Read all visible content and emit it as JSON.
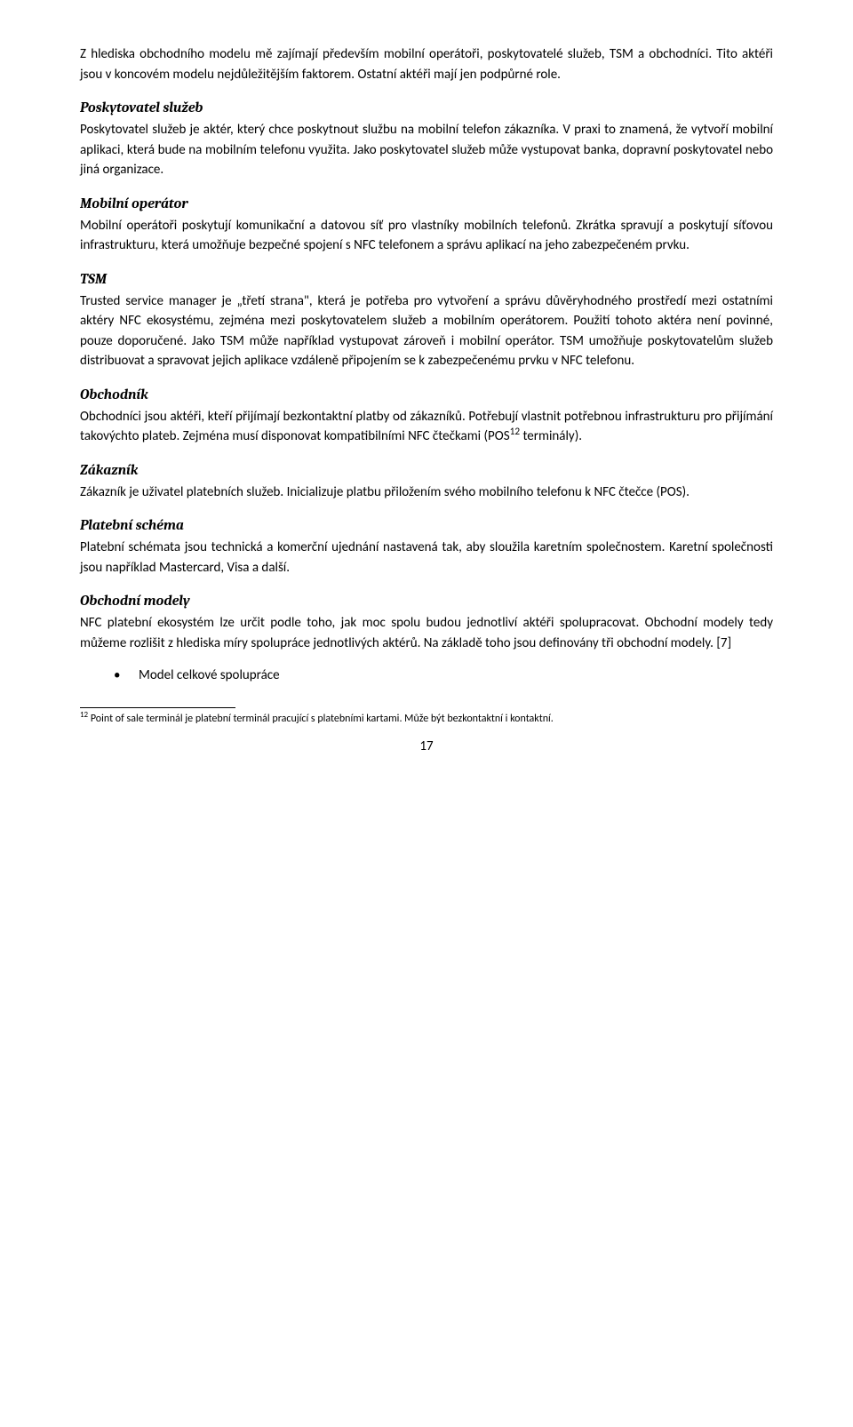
{
  "intro": "Z hlediska obchodního modelu mě zajímají především mobilní operátoři, poskytovatelé služeb, TSM a obchodníci. Tito aktéři jsou v koncovém modelu nejdůležitějším faktorem. Ostatní aktéři mají jen podpůrné role.",
  "sections": {
    "poskytovatel": {
      "title": "Poskytovatel služeb",
      "body": "Poskytovatel služeb je aktér, který chce poskytnout službu na mobilní telefon zákazníka. V praxi to znamená, že vytvoří mobilní aplikaci, která bude na mobilním telefonu využita. Jako poskytovatel služeb může vystupovat banka, dopravní poskytovatel nebo jiná organizace."
    },
    "operator": {
      "title": "Mobilní operátor",
      "body": "Mobilní operátoři poskytují komunikační a datovou síť pro vlastníky mobilních telefonů. Zkrátka spravují a poskytují síťovou infrastrukturu, která umožňuje bezpečné spojení s NFC telefonem a správu aplikací na jeho zabezpečeném prvku."
    },
    "tsm": {
      "title": "TSM",
      "body": "Trusted service manager je „třetí strana\", která je potřeba pro vytvoření a správu důvěryhodného prostředí mezi ostatními aktéry NFC ekosystému, zejména mezi poskytovatelem služeb a mobilním operátorem. Použití tohoto aktéra není povinné, pouze doporučené. Jako TSM může například vystupovat zároveň i mobilní operátor. TSM umožňuje poskytovatelům služeb distribuovat a spravovat jejich aplikace vzdáleně připojením se k zabezpečenému prvku v NFC telefonu."
    },
    "obchodnik": {
      "title": "Obchodník",
      "body_pre": "Obchodníci jsou aktéři, kteří přijímají bezkontaktní platby od zákazníků. Potřebují vlastnit potřebnou infrastrukturu pro přijímání takovýchto plateb. Zejména musí disponovat kompatibilními NFC čtečkami (POS",
      "sup": "12",
      "body_post": " terminály)."
    },
    "zakaznik": {
      "title": "Zákazník",
      "body": "Zákazník je uživatel platebních služeb. Inicializuje platbu přiložením svého mobilního telefonu k NFC čtečce (POS)."
    },
    "schema": {
      "title": "Platební schéma",
      "body": "Platební schémata jsou technická a komerční ujednání nastavená tak, aby sloužila karetním společnostem. Karetní společnosti jsou například Mastercard, Visa a další."
    },
    "modely": {
      "title": "Obchodní modely",
      "body": "NFC platební ekosystém lze určit podle toho, jak moc spolu budou jednotliví aktéři spolupracovat. Obchodní modely tedy můžeme rozlišit z hlediska míry spolupráce jednotlivých aktérů. Na základě toho jsou definovány tři obchodní modely. [7]"
    }
  },
  "bullets": [
    "Model celkové spolupráce"
  ],
  "footnote": {
    "sup": "12",
    "text": " Point of sale terminál je platební terminál pracující s platebními kartami. Může být bezkontaktní i kontaktní."
  },
  "page_number": "17"
}
